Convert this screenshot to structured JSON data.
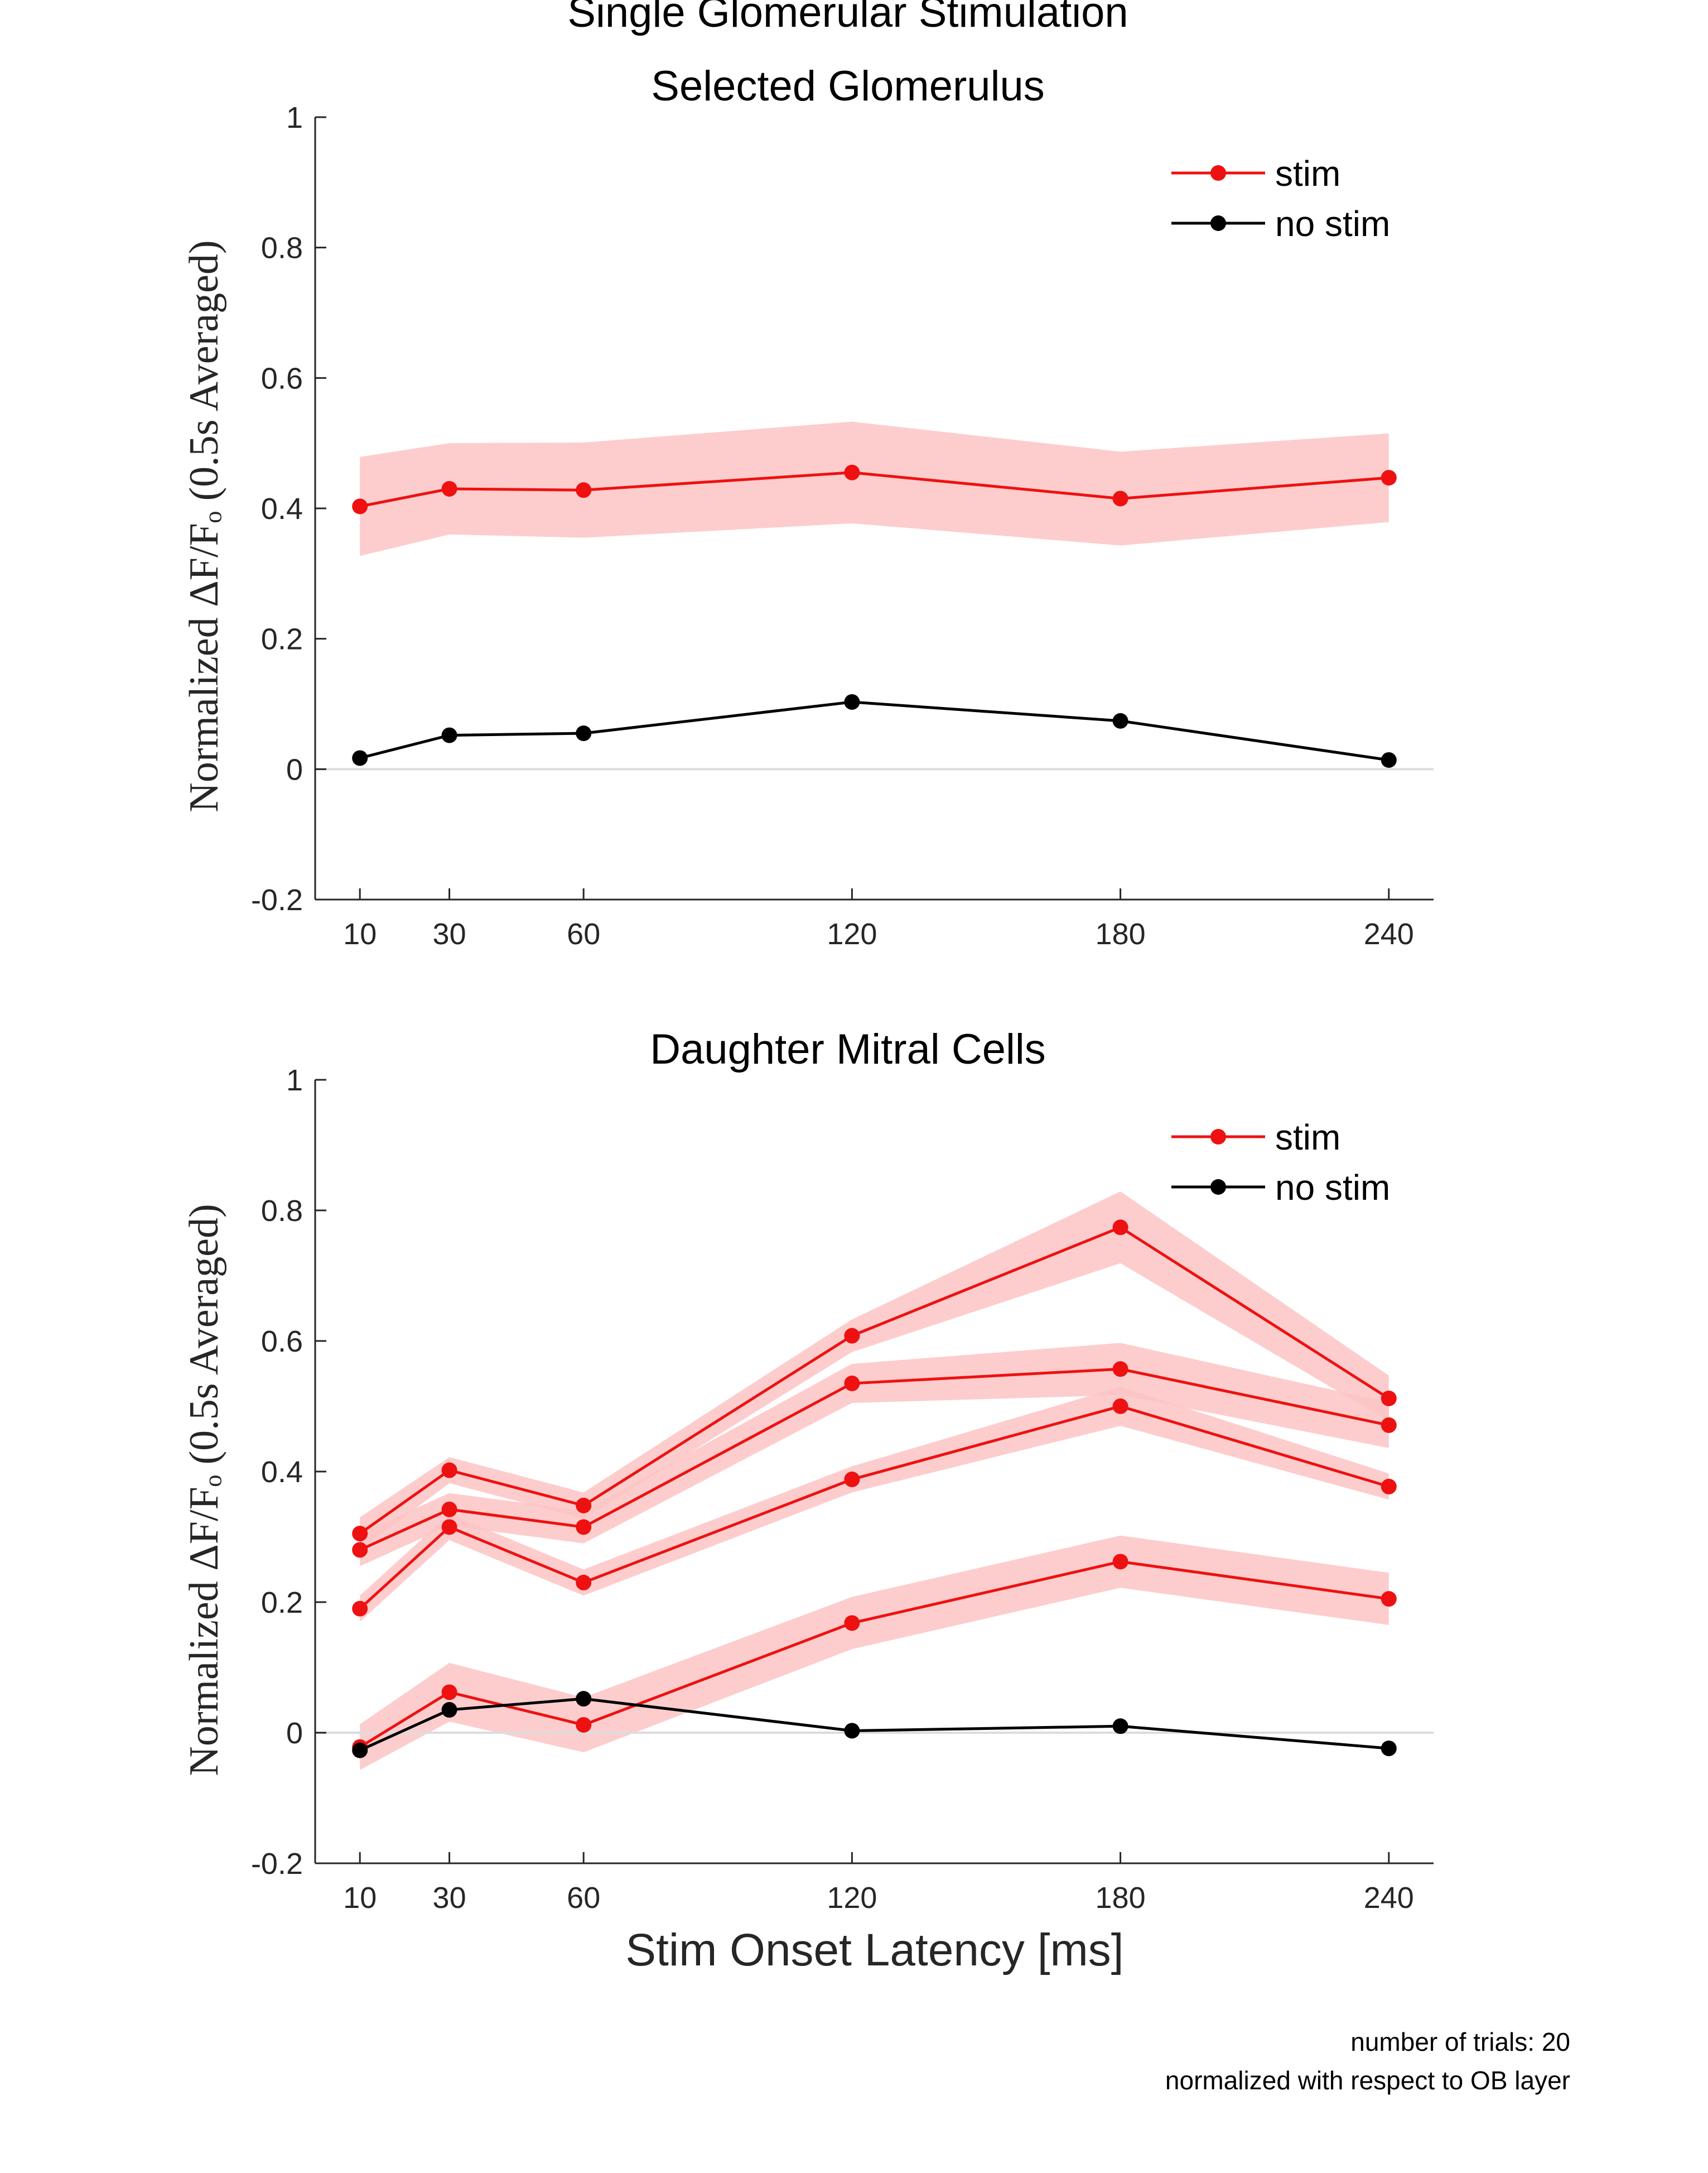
{
  "figure_title": "Single Glomerular Stimulation",
  "xlabel": "Stim Onset Latency [ms]",
  "notes": [
    "number of trials: 20",
    "normalized with respect to OB layer"
  ],
  "colors": {
    "stim": "#ee1111",
    "stim_band": "#fdc4c4",
    "no_stim": "#000000",
    "zero_line": "#dcdcdc",
    "axis": "#262626"
  },
  "chart_data": [
    {
      "type": "line",
      "title": "Selected Glomerulus",
      "ylabel": "Normalized ΔF/Fₒ (0.5s Averaged)",
      "x": [
        10,
        30,
        60,
        120,
        180,
        240
      ],
      "xlim": [
        0,
        250
      ],
      "ylim": [
        -0.2,
        1
      ],
      "yticks": [
        -0.2,
        0,
        0.2,
        0.4,
        0.6,
        0.8,
        1
      ],
      "ytick_labels": [
        "-0.2",
        "0",
        "0.2",
        "0.4",
        "0.6",
        "0.8",
        "1"
      ],
      "xticks": [
        10,
        30,
        60,
        120,
        180,
        240
      ],
      "xtick_labels": [
        "10",
        "30",
        "60",
        "120",
        "180",
        "240"
      ],
      "legend": {
        "position": "top-right",
        "entries": [
          "stim",
          "no stim"
        ]
      },
      "series": [
        {
          "name": "stim",
          "role": "stim",
          "values": [
            0.403,
            0.43,
            0.428,
            0.455,
            0.415,
            0.447
          ],
          "error": [
            0.076,
            0.07,
            0.073,
            0.078,
            0.072,
            0.068
          ]
        },
        {
          "name": "no stim",
          "role": "nostim",
          "values": [
            0.017,
            0.052,
            0.055,
            0.103,
            0.074,
            0.014
          ]
        }
      ]
    },
    {
      "type": "line",
      "title": "Daughter Mitral Cells",
      "ylabel": "Normalized ΔF/Fₒ (0.5s Averaged)",
      "x": [
        10,
        30,
        60,
        120,
        180,
        240
      ],
      "xlim": [
        0,
        250
      ],
      "ylim": [
        -0.2,
        1
      ],
      "yticks": [
        -0.2,
        0,
        0.2,
        0.4,
        0.6,
        0.8,
        1
      ],
      "ytick_labels": [
        "-0.2",
        "0",
        "0.2",
        "0.4",
        "0.6",
        "0.8",
        "1"
      ],
      "xticks": [
        10,
        30,
        60,
        120,
        180,
        240
      ],
      "xtick_labels": [
        "10",
        "30",
        "60",
        "120",
        "180",
        "240"
      ],
      "legend": {
        "position": "top-right",
        "entries": [
          "stim",
          "no stim"
        ]
      },
      "series": [
        {
          "role": "stim",
          "values": [
            0.305,
            0.402,
            0.348,
            0.608,
            0.774,
            0.512
          ],
          "error": [
            0.025,
            0.02,
            0.02,
            0.025,
            0.055,
            0.035
          ]
        },
        {
          "role": "stim",
          "values": [
            0.28,
            0.342,
            0.315,
            0.535,
            0.557,
            0.471
          ],
          "error": [
            0.025,
            0.025,
            0.025,
            0.03,
            0.04,
            0.035
          ]
        },
        {
          "role": "stim",
          "values": [
            0.19,
            0.315,
            0.23,
            0.388,
            0.5,
            0.377
          ],
          "error": [
            0.02,
            0.02,
            0.02,
            0.02,
            0.03,
            0.02
          ]
        },
        {
          "role": "stim",
          "values": [
            -0.022,
            0.062,
            0.012,
            0.168,
            0.262,
            0.205
          ],
          "error": [
            0.035,
            0.045,
            0.042,
            0.04,
            0.04,
            0.04
          ]
        },
        {
          "name": "no stim",
          "role": "nostim",
          "values": [
            -0.027,
            0.035,
            0.052,
            0.003,
            0.01,
            -0.024
          ]
        }
      ]
    }
  ]
}
